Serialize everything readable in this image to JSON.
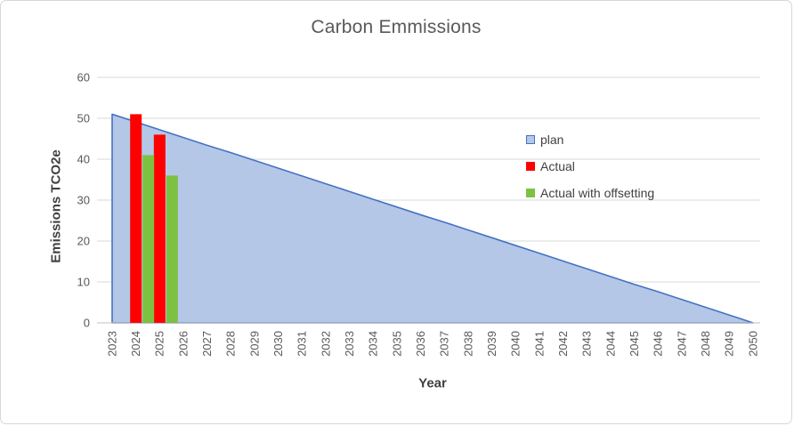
{
  "chart_frame": {
    "background": "#FFFFFF",
    "border_color": "#D7D7D7"
  },
  "colors": {
    "gridline": "#D9D9D9",
    "axis_line": "#BFBFBF",
    "tick_text": "#595959",
    "title_text": "#595959",
    "axis_title_text": "#404040"
  },
  "chart_data": {
    "type": "combo-area-bar",
    "title": "Carbon Emmissions",
    "xlabel": "Year",
    "ylabel": "Emissions TCO2e",
    "ylim": [
      0,
      60
    ],
    "yticks": [
      0,
      10,
      20,
      30,
      40,
      50,
      60
    ],
    "grid": "horizontal",
    "legend_position": "middle-right-overlay",
    "categories": [
      2023,
      2024,
      2025,
      2026,
      2027,
      2028,
      2029,
      2030,
      2031,
      2032,
      2033,
      2034,
      2035,
      2036,
      2037,
      2038,
      2039,
      2040,
      2041,
      2042,
      2043,
      2044,
      2045,
      2046,
      2047,
      2048,
      2049,
      2050
    ],
    "series": [
      {
        "name": "plan",
        "type": "area",
        "fill": "#B4C7E7",
        "line": "#4472C4",
        "shape": "linear decline from 51 in 2023 to 0 in 2050",
        "values": [
          51,
          49.1,
          47.2,
          45.3,
          43.4,
          41.6,
          39.7,
          37.8,
          35.9,
          34,
          32.1,
          30.2,
          28.3,
          26.4,
          24.6,
          22.7,
          20.8,
          18.9,
          17,
          15.1,
          13.2,
          11.3,
          9.4,
          7.6,
          5.7,
          3.8,
          1.9,
          0
        ]
      },
      {
        "name": "Actual",
        "type": "bar",
        "color": "#FF0000",
        "values": [
          null,
          51,
          46,
          null,
          null,
          null,
          null,
          null,
          null,
          null,
          null,
          null,
          null,
          null,
          null,
          null,
          null,
          null,
          null,
          null,
          null,
          null,
          null,
          null,
          null,
          null,
          null,
          null
        ]
      },
      {
        "name": "Actual with offsetting",
        "type": "bar",
        "color": "#7CC142",
        "values": [
          null,
          41,
          36,
          null,
          null,
          null,
          null,
          null,
          null,
          null,
          null,
          null,
          null,
          null,
          null,
          null,
          null,
          null,
          null,
          null,
          null,
          null,
          null,
          null,
          null,
          null,
          null,
          null
        ]
      }
    ]
  }
}
